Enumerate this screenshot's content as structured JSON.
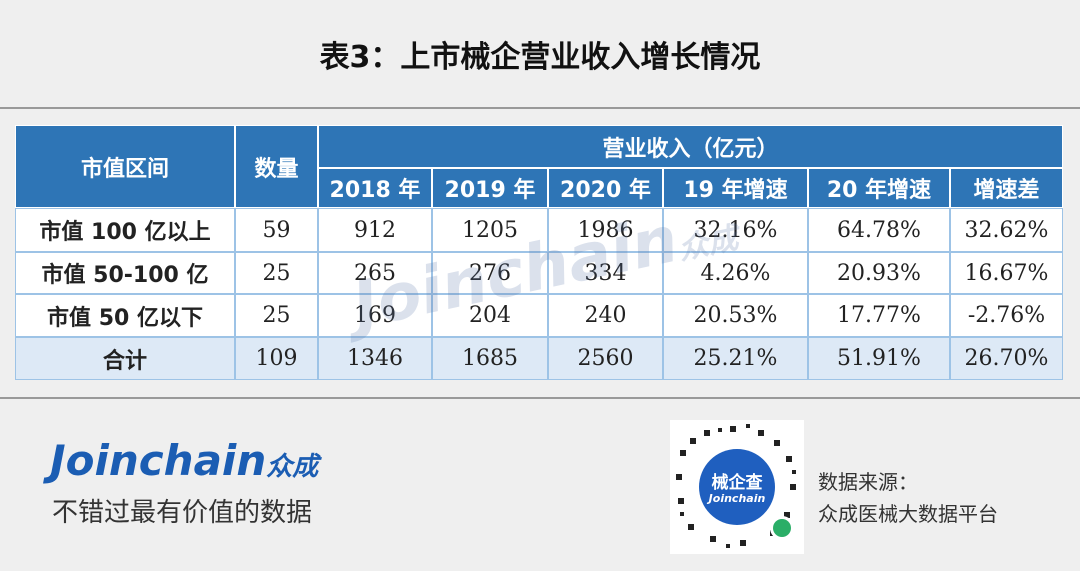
{
  "header": {
    "title": "表3：上市械企营业收入增长情况"
  },
  "table": {
    "columns": {
      "left": [
        "市值区间",
        "数量"
      ],
      "group": "营业收入（亿元）",
      "sub": [
        "2018 年",
        "2019 年",
        "2020 年",
        "19 年增速",
        "20 年增速",
        "增速差"
      ]
    },
    "rows": [
      [
        "市值 100 亿以上",
        "59",
        "912",
        "1205",
        "1986",
        "32.16%",
        "64.78%",
        "32.62%"
      ],
      [
        "市值 50-100 亿",
        "25",
        "265",
        "276",
        "334",
        "4.26%",
        "20.93%",
        "16.67%"
      ],
      [
        "市值 50 亿以下",
        "25",
        "169",
        "204",
        "240",
        "20.53%",
        "17.77%",
        "-2.76%"
      ],
      [
        "合计",
        "109",
        "1346",
        "1685",
        "2560",
        "25.21%",
        "51.91%",
        "26.70%"
      ]
    ]
  },
  "watermark": {
    "brand": "Joinchain",
    "cn": "众成"
  },
  "footer": {
    "logo": "Joinchain",
    "logo_cn": "众成",
    "slogan": "不错过最有价值的数据",
    "qr_title": "械企查",
    "qr_brand": "Joinchain",
    "source_label": "数据来源：",
    "source": "众成医械大数据平台"
  }
}
